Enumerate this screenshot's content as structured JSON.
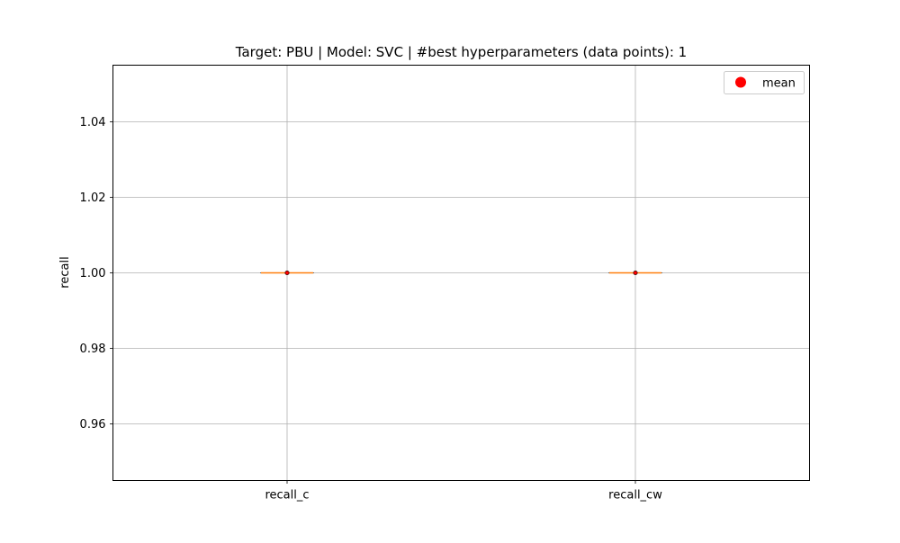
{
  "chart_data": {
    "type": "box",
    "title": "Target: PBU | Model: SVC | #best hyperparameters (data points): 1",
    "xlabel": "",
    "ylabel": "recall",
    "categories": [
      "recall_c",
      "recall_cw"
    ],
    "series": [
      {
        "name": "",
        "values": [
          {
            "category": "recall_c",
            "min": 1.0,
            "q1": 1.0,
            "median": 1.0,
            "q3": 1.0,
            "max": 1.0
          },
          {
            "category": "recall_cw",
            "min": 1.0,
            "q1": 1.0,
            "median": 1.0,
            "q3": 1.0,
            "max": 1.0
          }
        ]
      }
    ],
    "means": [
      1.0,
      1.0
    ],
    "ylim": [
      0.945,
      1.055
    ],
    "yticks": [
      0.96,
      0.98,
      1.0,
      1.02,
      1.04
    ],
    "ytick_labels": [
      "0.96",
      "0.98",
      "1.00",
      "1.02",
      "1.04"
    ],
    "grid": true,
    "legend": {
      "placement": "top-right",
      "entries": [
        {
          "label": "mean",
          "marker": "circle",
          "color": "#ff0000"
        }
      ]
    },
    "colors": {
      "box": "#000000",
      "median": "#ff7f0e",
      "mean": "#ff0000",
      "grid": "#b0b0b0"
    }
  }
}
